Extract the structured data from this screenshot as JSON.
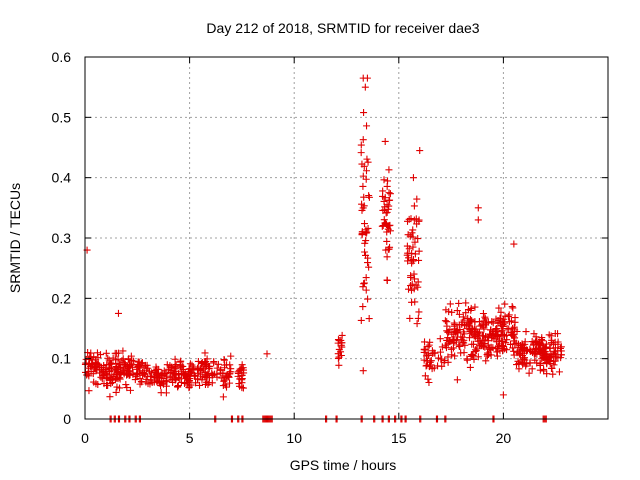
{
  "chart_data": {
    "type": "scatter",
    "title": "Day 212 of 2018, SRMTID for receiver dae3",
    "xlabel": "GPS time / hours",
    "ylabel": "SRMTID / TECUs",
    "xlim": [
      0,
      25
    ],
    "ylim": [
      0,
      0.6
    ],
    "grid": true,
    "x_ticks": [
      0,
      5,
      10,
      15,
      20
    ],
    "y_ticks": [
      0,
      0.1,
      0.2,
      0.3,
      0.4,
      0.5,
      0.6
    ],
    "x_tick_labels": [
      "0",
      "5",
      "10",
      "15",
      "20"
    ],
    "y_tick_labels": [
      "0",
      "0.1",
      "0.2",
      "0.3",
      "0.4",
      "0.5",
      "0.6"
    ],
    "marker": "+",
    "marker_color": "#e00000",
    "series": [
      {
        "name": "dae3",
        "description": "Point clusters estimated from the plot; each cluster is an x range (hours) with approximate y center, spread, count, plus selected outliers",
        "clusters": [
          {
            "x": [
              0.0,
              1.6
            ],
            "y_center": 0.082,
            "y_spread": 0.03,
            "count": 110
          },
          {
            "x": [
              1.5,
              3.0
            ],
            "y_center": 0.082,
            "y_spread": 0.028,
            "count": 90
          },
          {
            "x": [
              3.0,
              5.0
            ],
            "y_center": 0.072,
            "y_spread": 0.025,
            "count": 110
          },
          {
            "x": [
              5.0,
              6.2
            ],
            "y_center": 0.078,
            "y_spread": 0.028,
            "count": 70
          },
          {
            "x": [
              6.3,
              7.0
            ],
            "y_center": 0.075,
            "y_spread": 0.028,
            "count": 35
          },
          {
            "x": [
              7.3,
              7.6
            ],
            "y_center": 0.072,
            "y_spread": 0.025,
            "count": 20
          },
          {
            "x": [
              12.1,
              12.3
            ],
            "y_center": 0.12,
            "y_spread": 0.03,
            "count": 16
          },
          {
            "x": [
              13.2,
              13.6
            ],
            "y_center": 0.33,
            "y_spread": 0.15,
            "count": 45
          },
          {
            "x": [
              14.2,
              14.6
            ],
            "y_center": 0.33,
            "y_spread": 0.08,
            "count": 40
          },
          {
            "x": [
              15.4,
              16.0
            ],
            "y_center": 0.27,
            "y_spread": 0.09,
            "count": 50
          },
          {
            "x": [
              16.2,
              17.2
            ],
            "y_center": 0.1,
            "y_spread": 0.03,
            "count": 40
          },
          {
            "x": [
              17.2,
              19.8
            ],
            "y_center": 0.14,
            "y_spread": 0.045,
            "count": 200
          },
          {
            "x": [
              19.8,
              20.6
            ],
            "y_center": 0.14,
            "y_spread": 0.05,
            "count": 60
          },
          {
            "x": [
              20.6,
              22.8
            ],
            "y_center": 0.11,
            "y_spread": 0.035,
            "count": 160
          }
        ],
        "outliers": [
          {
            "x": 0.1,
            "y": 0.28
          },
          {
            "x": 1.6,
            "y": 0.175
          },
          {
            "x": 8.7,
            "y": 0.108
          },
          {
            "x": 13.3,
            "y": 0.565
          },
          {
            "x": 13.5,
            "y": 0.565
          },
          {
            "x": 13.4,
            "y": 0.55
          },
          {
            "x": 13.3,
            "y": 0.463
          },
          {
            "x": 14.35,
            "y": 0.46
          },
          {
            "x": 16.0,
            "y": 0.445
          },
          {
            "x": 15.7,
            "y": 0.4
          },
          {
            "x": 18.8,
            "y": 0.35
          },
          {
            "x": 18.8,
            "y": 0.33
          },
          {
            "x": 20.5,
            "y": 0.29
          },
          {
            "x": 13.3,
            "y": 0.08
          },
          {
            "x": 17.8,
            "y": 0.065
          },
          {
            "x": 20.0,
            "y": 0.04
          }
        ],
        "zero_points_x": [
          1.2,
          1.4,
          1.6,
          1.9,
          2.1,
          2.4,
          2.6,
          6.2,
          7.0,
          7.3,
          7.5,
          8.5,
          8.6,
          8.7,
          8.8,
          8.9,
          11.5,
          12.0,
          13.2,
          13.8,
          14.2,
          14.5,
          14.8,
          15.1,
          15.3,
          16.0,
          16.8,
          17.2,
          19.5,
          21.9,
          22.0
        ]
      }
    ]
  }
}
